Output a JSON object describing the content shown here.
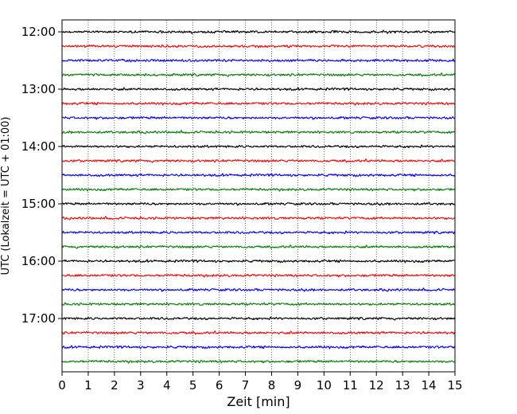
{
  "chart_data": {
    "type": "line",
    "title": "",
    "xlabel": "Zeit  [min]",
    "ylabel": "UTC (Lokalzeit = UTC + 01:00)",
    "xlim": [
      0,
      15
    ],
    "x_ticks": [
      "0",
      "1",
      "2",
      "3",
      "4",
      "5",
      "6",
      "7",
      "8",
      "9",
      "10",
      "11",
      "12",
      "13",
      "14",
      "15"
    ],
    "y_ticks": [
      "12:00",
      "13:00",
      "14:00",
      "15:00",
      "16:00",
      "17:00"
    ],
    "grid": "vertical dotted",
    "trace_colors": [
      "#000000",
      "#ff0000",
      "#0000ff",
      "#008000"
    ],
    "series": [
      {
        "start": "12:00",
        "color": "#000000"
      },
      {
        "start": "12:15",
        "color": "#ff0000"
      },
      {
        "start": "12:30",
        "color": "#0000ff"
      },
      {
        "start": "12:45",
        "color": "#008000"
      },
      {
        "start": "13:00",
        "color": "#000000"
      },
      {
        "start": "13:15",
        "color": "#ff0000"
      },
      {
        "start": "13:30",
        "color": "#0000ff"
      },
      {
        "start": "13:45",
        "color": "#008000"
      },
      {
        "start": "14:00",
        "color": "#000000"
      },
      {
        "start": "14:15",
        "color": "#ff0000"
      },
      {
        "start": "14:30",
        "color": "#0000ff"
      },
      {
        "start": "14:45",
        "color": "#008000"
      },
      {
        "start": "15:00",
        "color": "#000000"
      },
      {
        "start": "15:15",
        "color": "#ff0000"
      },
      {
        "start": "15:30",
        "color": "#0000ff"
      },
      {
        "start": "15:45",
        "color": "#008000"
      },
      {
        "start": "16:00",
        "color": "#000000"
      },
      {
        "start": "16:15",
        "color": "#ff0000"
      },
      {
        "start": "16:30",
        "color": "#0000ff"
      },
      {
        "start": "16:45",
        "color": "#008000"
      },
      {
        "start": "17:00",
        "color": "#000000"
      },
      {
        "start": "17:15",
        "color": "#ff0000"
      },
      {
        "start": "17:30",
        "color": "#0000ff"
      },
      {
        "start": "17:45",
        "color": "#008000"
      }
    ]
  }
}
